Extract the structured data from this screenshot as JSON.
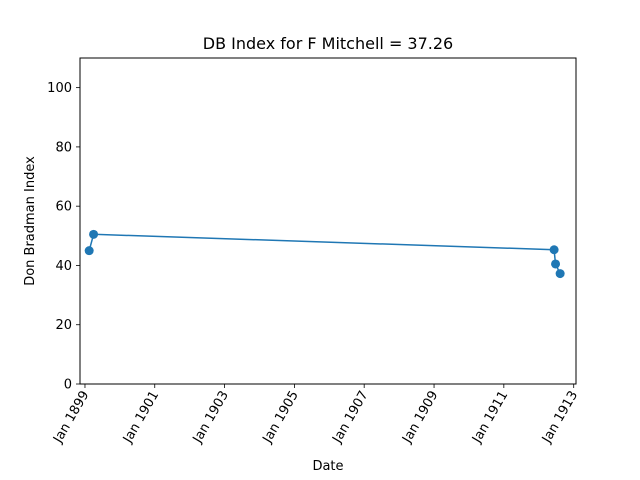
{
  "chart_data": {
    "type": "line",
    "title": "DB Index for F Mitchell = 37.26",
    "xlabel": "Date",
    "ylabel": "Don Bradman Index",
    "xlim": [
      "1898-11-10",
      "1913-01-25"
    ],
    "ylim": [
      0,
      110
    ],
    "x_ticks": [
      {
        "date": "1899-01-01",
        "label": "Jan 1899"
      },
      {
        "date": "1901-01-01",
        "label": "Jan 1901"
      },
      {
        "date": "1903-01-01",
        "label": "Jan 1903"
      },
      {
        "date": "1905-01-01",
        "label": "Jan 1905"
      },
      {
        "date": "1907-01-01",
        "label": "Jan 1907"
      },
      {
        "date": "1909-01-01",
        "label": "Jan 1909"
      },
      {
        "date": "1911-01-01",
        "label": "Jan 1911"
      },
      {
        "date": "1913-01-01",
        "label": "Jan 1913"
      }
    ],
    "y_ticks": [
      0,
      20,
      40,
      60,
      80,
      100
    ],
    "grid": false,
    "series": [
      {
        "color": "#1f77b4",
        "marker": "circle",
        "points": [
          {
            "x": "1899-02-14",
            "y": 45.0
          },
          {
            "x": "1899-04-01",
            "y": 50.5
          },
          {
            "x": "1912-06-10",
            "y": 45.3
          },
          {
            "x": "1912-06-25",
            "y": 40.5
          },
          {
            "x": "1912-08-12",
            "y": 37.26
          }
        ]
      }
    ]
  }
}
